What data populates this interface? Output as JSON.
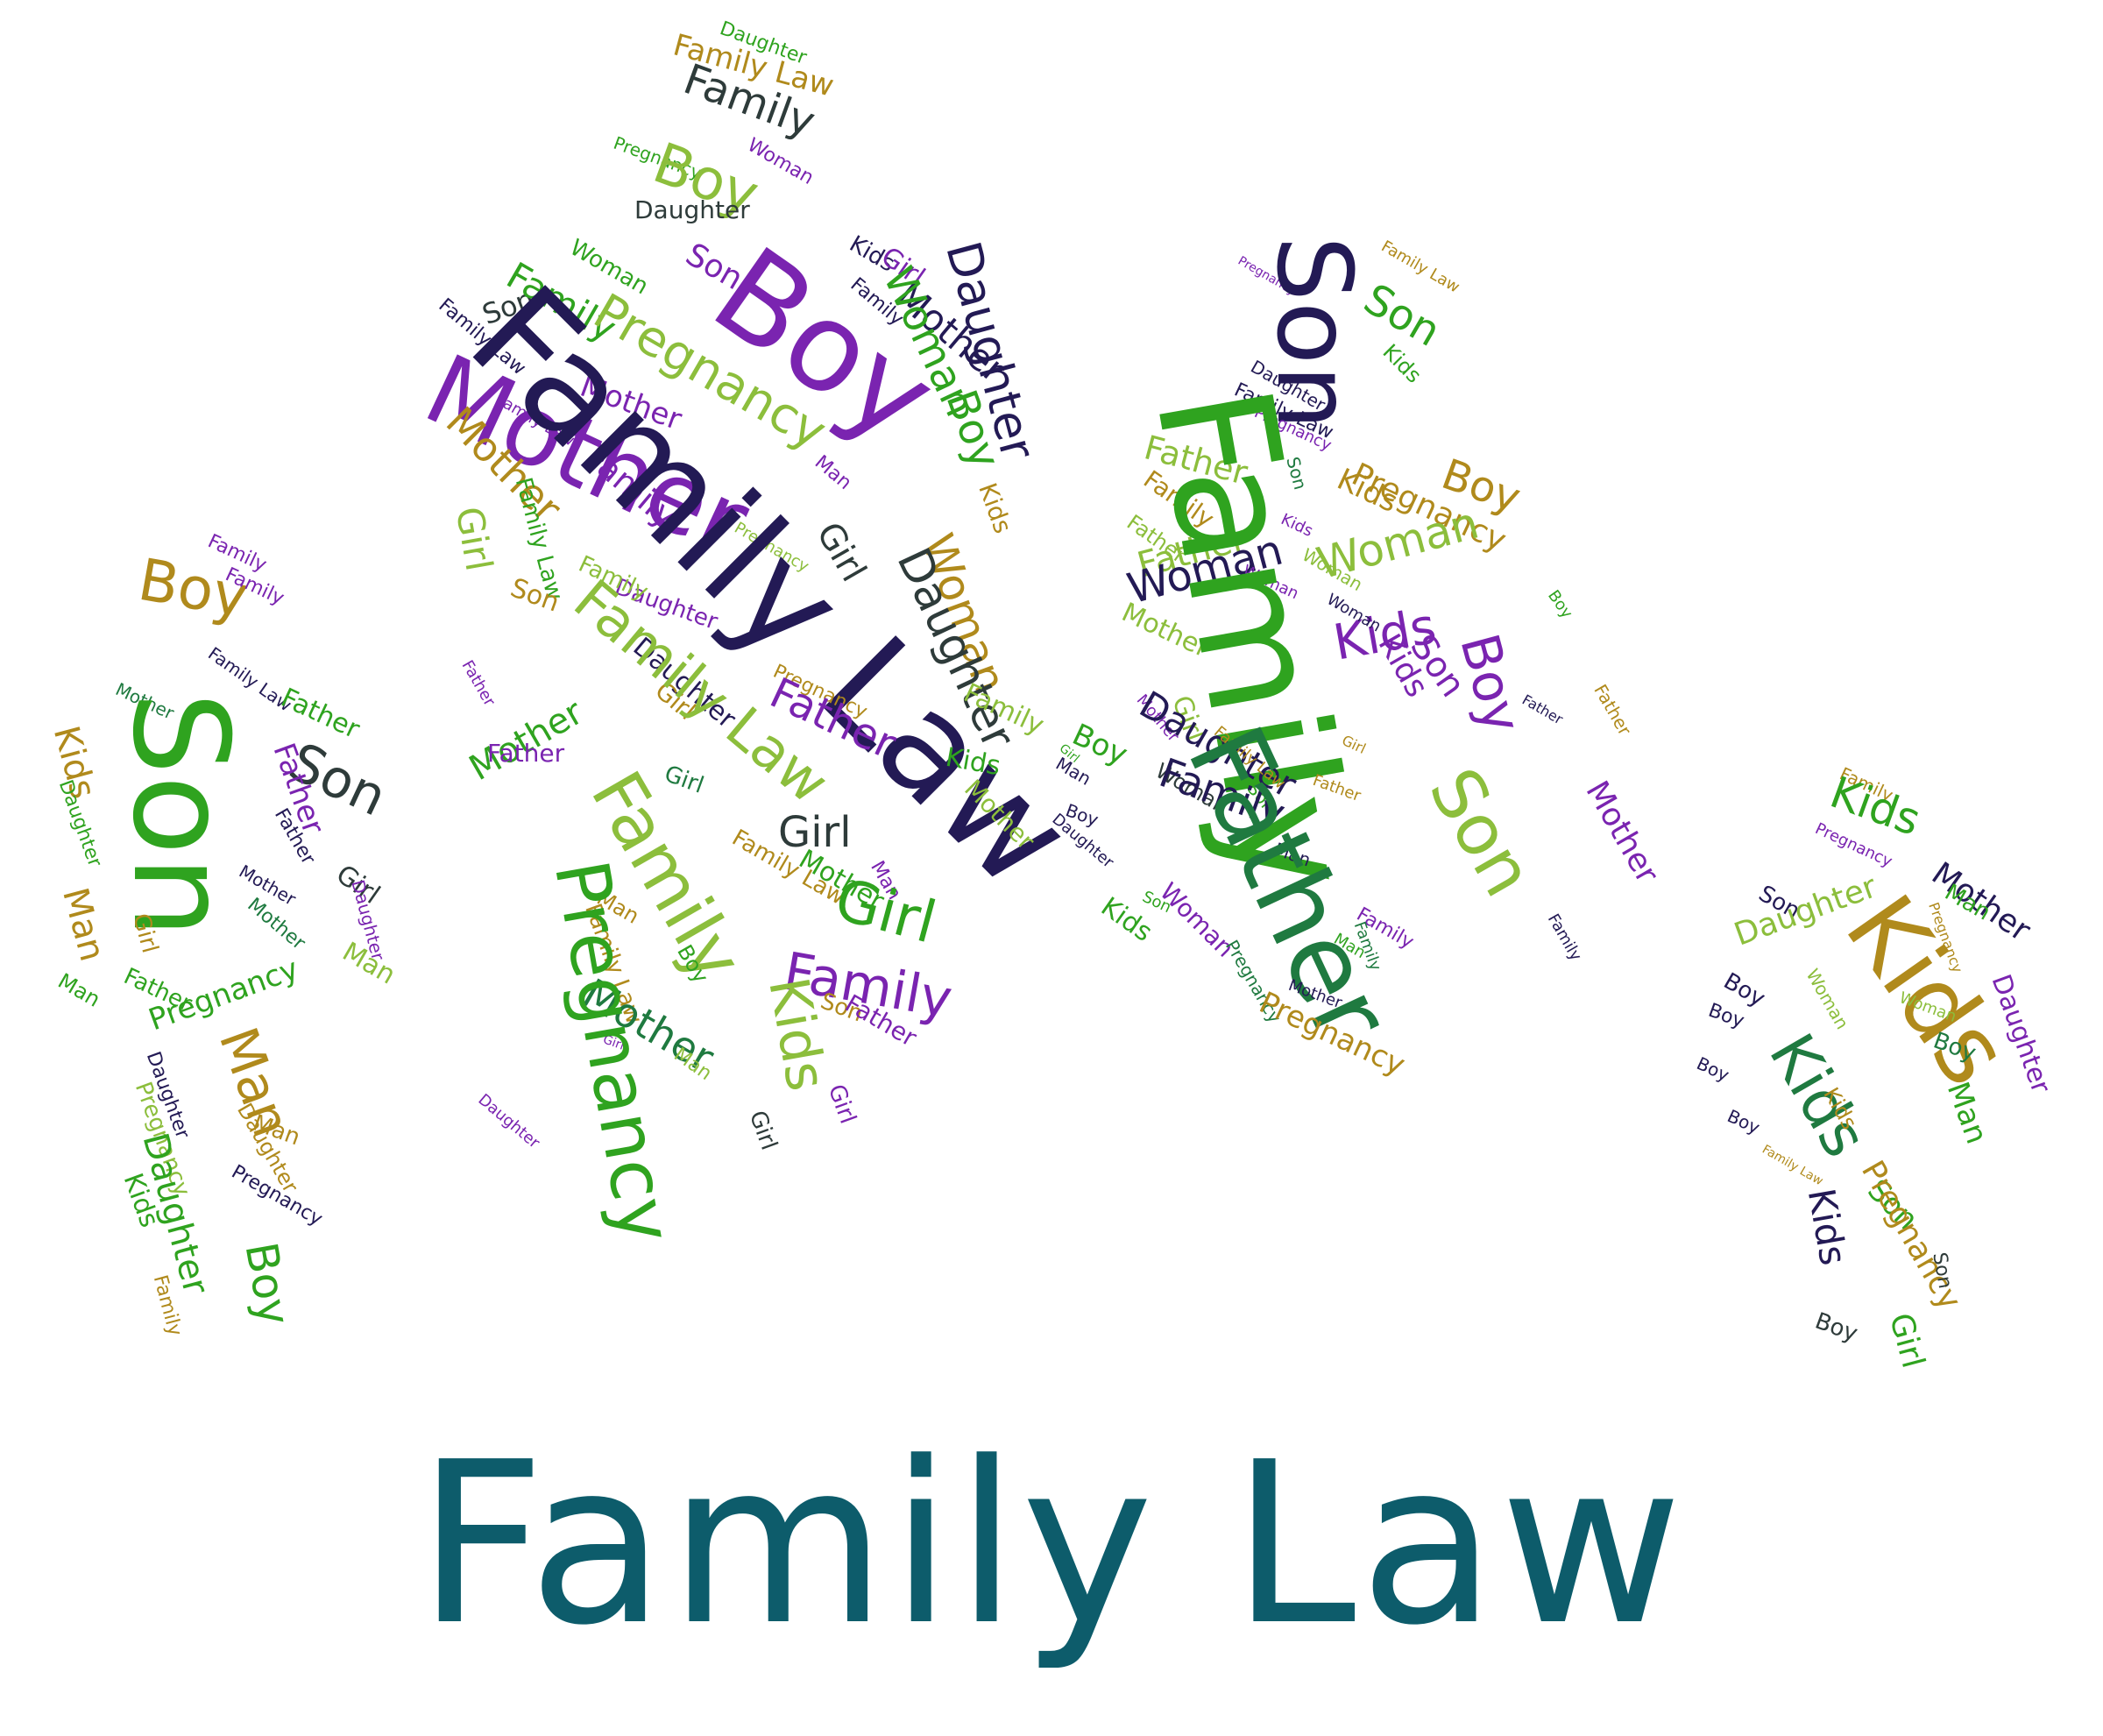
{
  "caption": "Family Law",
  "palette": {
    "green": "#2fa31f",
    "lime": "#8cbe3c",
    "purple": "#7a24b0",
    "navy": "#231a55",
    "dark": "#2e3b3a",
    "olive": "#b08a1c",
    "teal": "#0d5c6b",
    "forest": "#1f7a40"
  },
  "figures": [
    {
      "name": "child-left",
      "words": [
        "Family",
        "Boy",
        "Family",
        "Family Law",
        "Father",
        "Mother",
        "Son",
        "Son",
        "Kids",
        "Father",
        "Daughter",
        "Father",
        "Girl",
        "Man",
        "Mother",
        "Daughter",
        "Girl",
        "Man",
        "Mother",
        "Man",
        "Father",
        "Pregnancy",
        "Man",
        "Daughter",
        "Pregnancy",
        "Man",
        "Daughter",
        "Kids",
        "Pregnancy",
        "Daughter",
        "Boy",
        "Family"
      ]
    },
    {
      "name": "adult-left",
      "words": [
        "Daughter",
        "Family Law",
        "Family",
        "Pregnancy",
        "Woman",
        "Boy",
        "Daughter",
        "Woman",
        "Son",
        "Kids",
        "Girl",
        "Son",
        "Family",
        "Boy",
        "Family",
        "Pregnancy",
        "Mother",
        "Woman",
        "Daughter",
        "Family Law",
        "Mother",
        "Family Law",
        "Boy",
        "Mother",
        "Mother",
        "Family",
        "Man",
        "Kids",
        "Girl",
        "Family Law",
        "Pregnancy",
        "Daughter",
        "Family",
        "Family Law",
        "Girl",
        "Woman",
        "Daughter",
        "Daughter",
        "Father",
        "Son",
        "Family",
        "Girl",
        "Mother",
        "Family Law",
        "Pregnancy",
        "Father",
        "Kids",
        "Girl",
        "Father",
        "Girl",
        "Mother",
        "Man",
        "Family",
        "Mother",
        "Family Law",
        "Girl",
        "Man",
        "Family",
        "Kids",
        "Boy",
        "Family Law",
        "Mother",
        "Son",
        "Father",
        "Girl",
        "Pregnancy",
        "Man",
        "Daughter",
        "Girl",
        "Girl"
      ]
    },
    {
      "name": "adult-right",
      "words": [
        "Family Law",
        "Pregnancy",
        "Son",
        "Son",
        "Kids",
        "Daughter",
        "Family Law",
        "Pregnancy",
        "Son",
        "Kids",
        "Father",
        "Family",
        "Father",
        "Pregnancy",
        "Boy",
        "Father",
        "Woman",
        "Woman",
        "Woman",
        "Woman",
        "Kids",
        "Son",
        "Boy",
        "Boy",
        "Mother",
        "Girl",
        "Kids",
        "Woman",
        "Kids",
        "Father",
        "Family",
        "Boy",
        "Mother",
        "Daughter",
        "Family Law",
        "Son",
        "Girl",
        "Father",
        "Girl",
        "Man",
        "Woman",
        "Family",
        "Son",
        "Mother",
        "Boy",
        "Man",
        "Father",
        "Daughter",
        "Father",
        "Son",
        "Family",
        "Man",
        "Woman",
        "Kids",
        "Family",
        "Family",
        "Pregnancy",
        "Mother",
        "Pregnancy",
        "Family Law"
      ]
    },
    {
      "name": "child-right",
      "words": [
        "Family",
        "Kids",
        "Pregnancy",
        "Son",
        "Mother",
        "Man",
        "Daughter",
        "Kids",
        "Pregnancy",
        "Boy",
        "Woman",
        "Daughter",
        "Boy",
        "Woman",
        "Boy",
        "Kids",
        "Boy",
        "Boy",
        "Kids",
        "Man",
        "Son",
        "Family Law",
        "Kids",
        "Pregnancy",
        "Son",
        "Boy",
        "Girl"
      ]
    }
  ]
}
